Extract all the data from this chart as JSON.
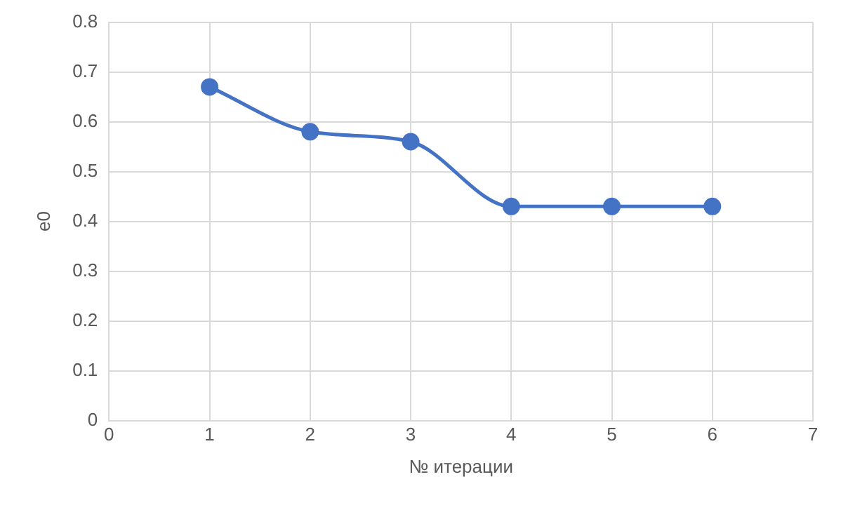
{
  "chart_data": {
    "type": "line",
    "xlabel": "№ итерации",
    "ylabel": "e0",
    "x": [
      1,
      2,
      3,
      4,
      5,
      6
    ],
    "series": [
      {
        "color": "#4472c4",
        "values": [
          0.67,
          0.58,
          0.56,
          0.43,
          0.43,
          0.43
        ]
      }
    ],
    "xlim": [
      0,
      7
    ],
    "xticks": [
      0,
      1,
      2,
      3,
      4,
      5,
      6,
      7
    ],
    "ylim": [
      0,
      0.8
    ],
    "yticks": [
      0,
      0.1,
      0.2,
      0.3,
      0.4,
      0.5,
      0.6,
      0.7,
      0.8
    ],
    "grid": true,
    "legend": false,
    "marker": "circle",
    "line_style": "solid"
  }
}
